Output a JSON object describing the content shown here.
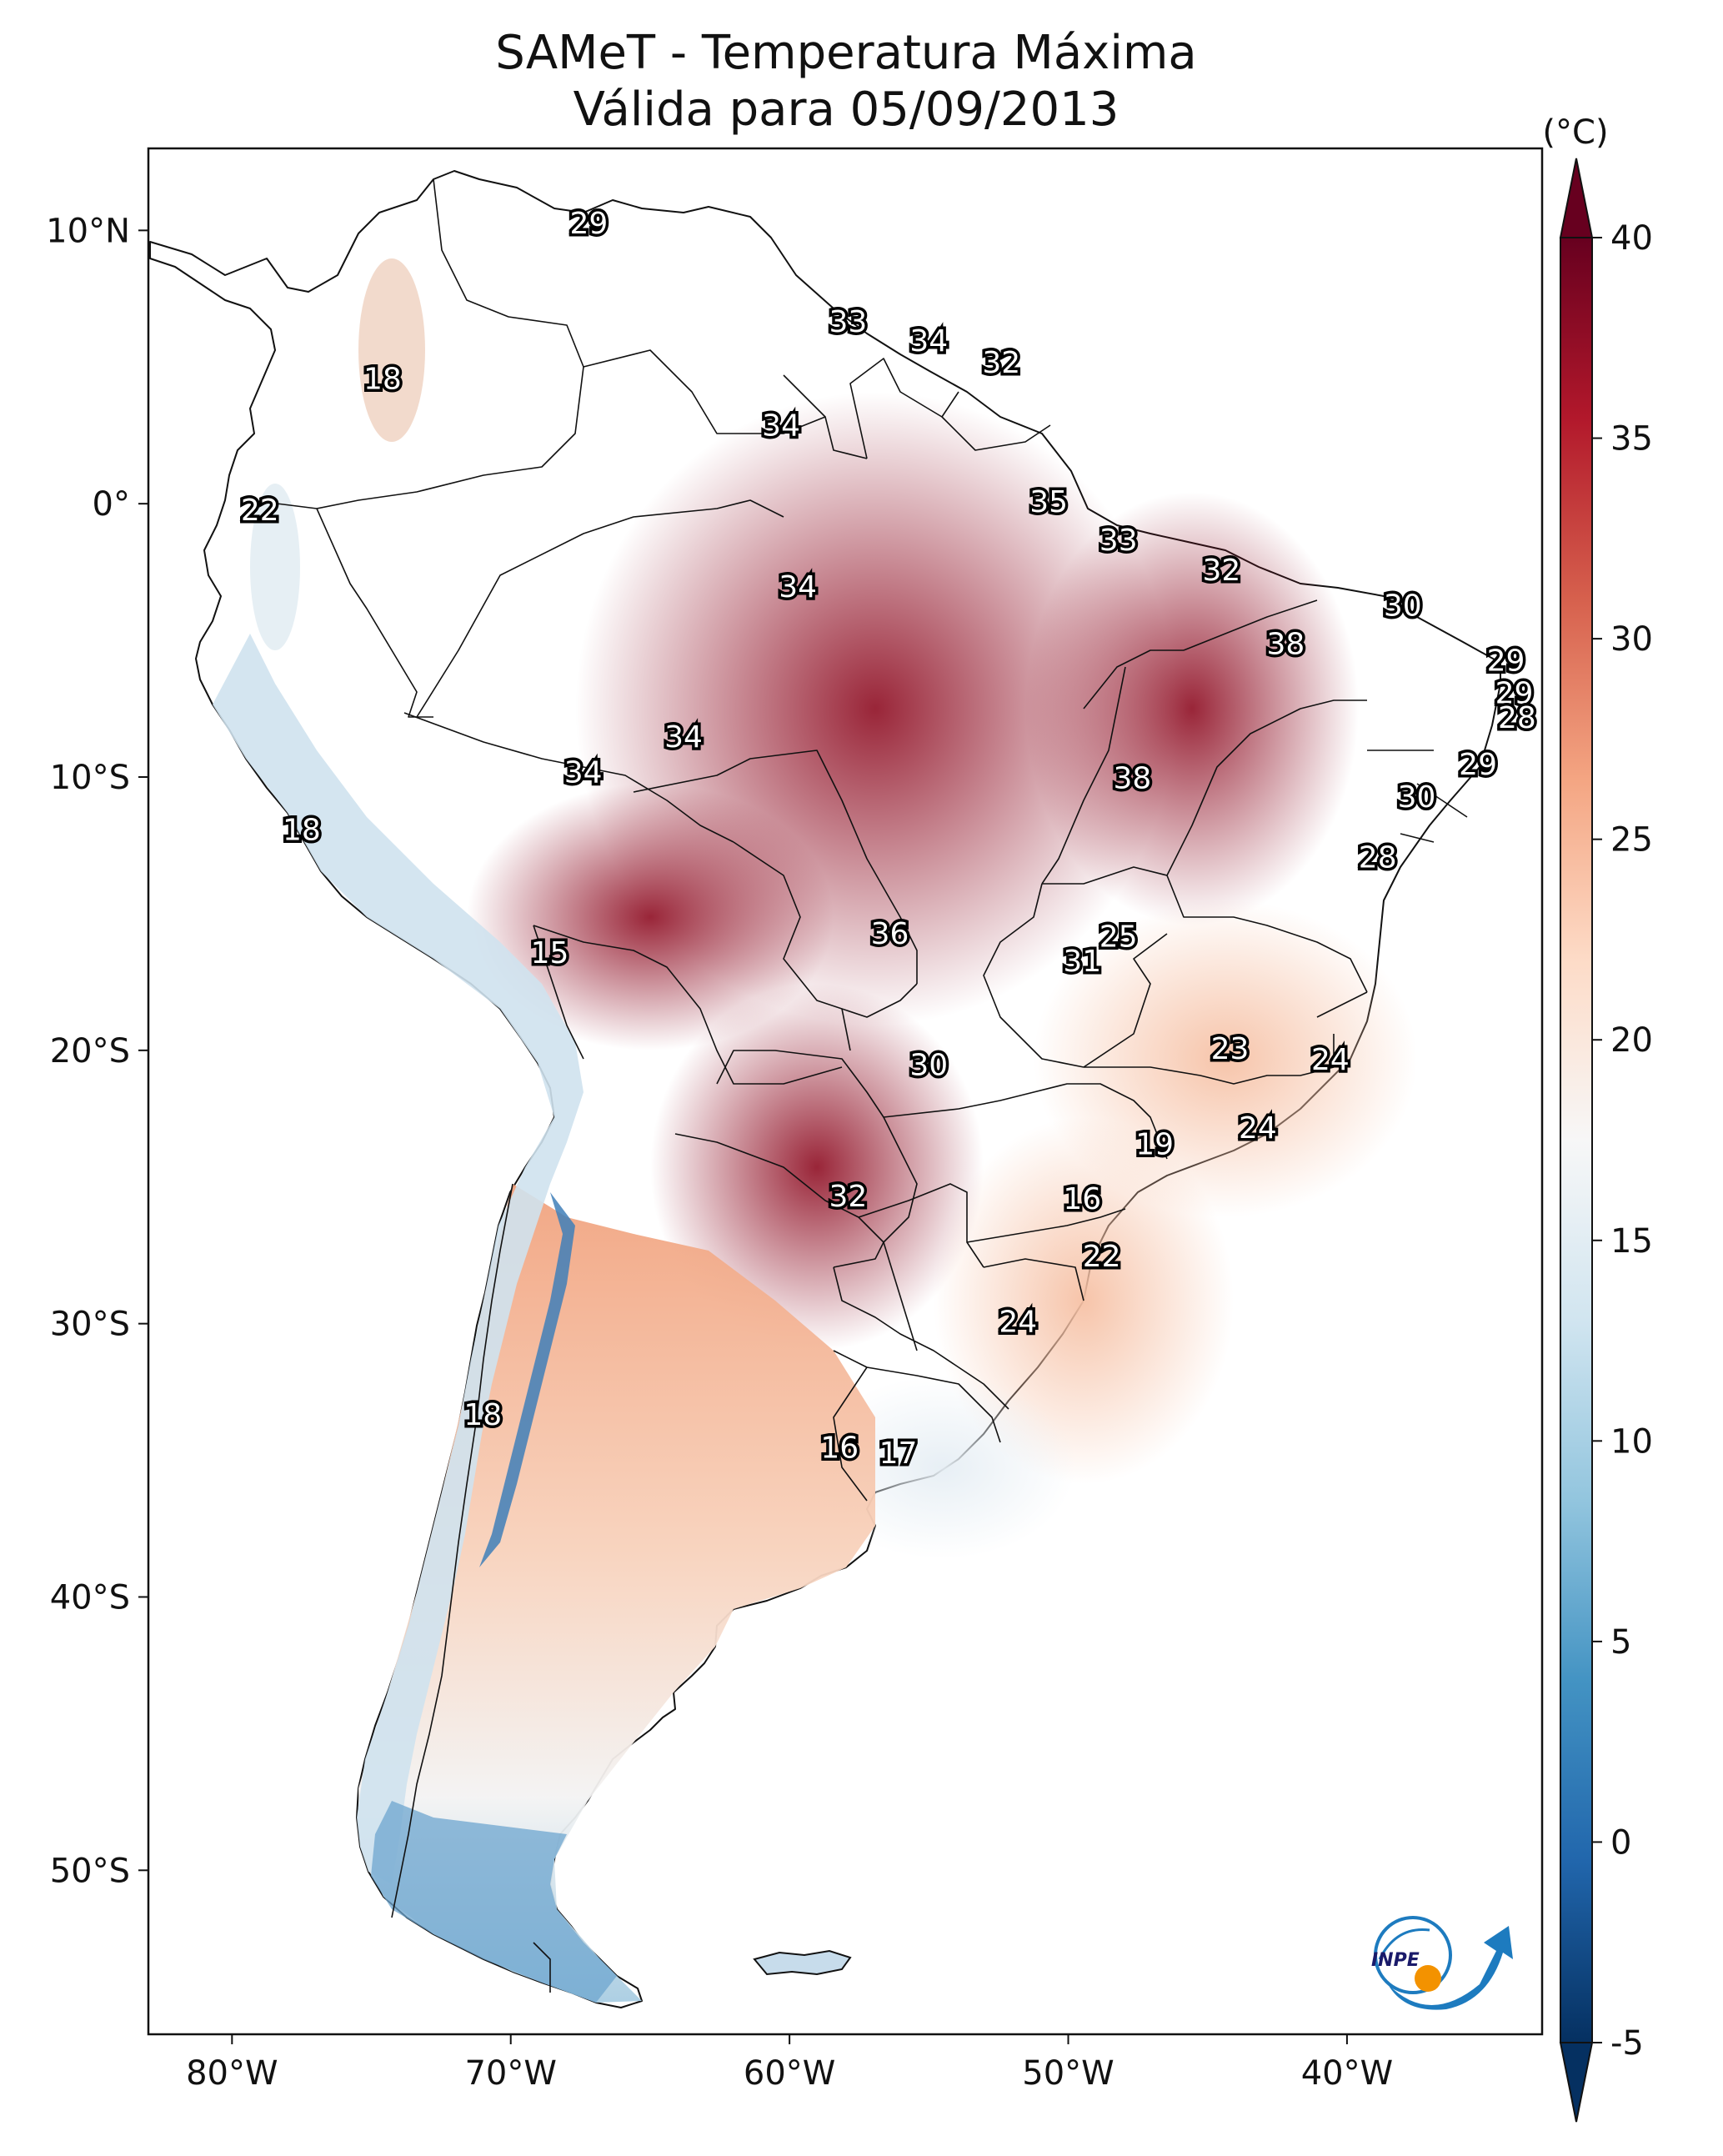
{
  "title": {
    "line1": "SAMeT - Temperatura Máxima",
    "line2": "Válida para 05/09/2013"
  },
  "map": {
    "lon_range": [
      -83,
      -33
    ],
    "lat_range": [
      -56,
      13
    ],
    "lon_ticks": [
      {
        "value": -80,
        "label": "80°W"
      },
      {
        "value": -70,
        "label": "70°W"
      },
      {
        "value": -60,
        "label": "60°W"
      },
      {
        "value": -50,
        "label": "50°W"
      },
      {
        "value": -40,
        "label": "40°W"
      }
    ],
    "lat_ticks": [
      {
        "value": 10,
        "label": "10°N"
      },
      {
        "value": 0,
        "label": "0°"
      },
      {
        "value": -10,
        "label": "10°S"
      },
      {
        "value": -20,
        "label": "20°S"
      },
      {
        "value": -30,
        "label": "30°S"
      },
      {
        "value": -40,
        "label": "40°S"
      },
      {
        "value": -50,
        "label": "50°S"
      }
    ]
  },
  "colorbar": {
    "unit_label": "(°C)",
    "min": -5,
    "max": 40,
    "ticks": [
      {
        "value": 40,
        "label": "40"
      },
      {
        "value": 35,
        "label": "35"
      },
      {
        "value": 30,
        "label": "30"
      },
      {
        "value": 25,
        "label": "25"
      },
      {
        "value": 20,
        "label": "20"
      },
      {
        "value": 15,
        "label": "15"
      },
      {
        "value": 10,
        "label": "10"
      },
      {
        "value": 5,
        "label": "5"
      },
      {
        "value": 0,
        "label": "0"
      },
      {
        "value": -5,
        "label": "-5"
      }
    ],
    "colors": [
      "#053061",
      "#2166ac",
      "#4393c3",
      "#92c5de",
      "#d1e5f0",
      "#f7f7f7",
      "#fddbc7",
      "#f4a582",
      "#d6604d",
      "#b2182b",
      "#67001f"
    ]
  },
  "temperature_labels": [
    {
      "value": "29",
      "lon": -67.2,
      "lat": 10.2
    },
    {
      "value": "18",
      "lon": -74.6,
      "lat": 4.5
    },
    {
      "value": "33",
      "lon": -57.9,
      "lat": 6.6
    },
    {
      "value": "34",
      "lon": -55.0,
      "lat": 5.9
    },
    {
      "value": "32",
      "lon": -52.4,
      "lat": 5.1
    },
    {
      "value": "34",
      "lon": -60.3,
      "lat": 2.8
    },
    {
      "value": "22",
      "lon": -79.0,
      "lat": -0.3
    },
    {
      "value": "35",
      "lon": -50.7,
      "lat": 0.0
    },
    {
      "value": "33",
      "lon": -48.2,
      "lat": -1.4
    },
    {
      "value": "32",
      "lon": -44.5,
      "lat": -2.5
    },
    {
      "value": "30",
      "lon": -38.0,
      "lat": -3.8
    },
    {
      "value": "34",
      "lon": -59.7,
      "lat": -3.1
    },
    {
      "value": "38",
      "lon": -42.2,
      "lat": -5.2
    },
    {
      "value": "29",
      "lon": -34.3,
      "lat": -5.8
    },
    {
      "value": "29",
      "lon": -34.0,
      "lat": -7.0
    },
    {
      "value": "28",
      "lon": -33.9,
      "lat": -7.9
    },
    {
      "value": "34",
      "lon": -63.8,
      "lat": -8.6
    },
    {
      "value": "34",
      "lon": -67.4,
      "lat": -9.9
    },
    {
      "value": "38",
      "lon": -47.7,
      "lat": -10.1
    },
    {
      "value": "29",
      "lon": -35.3,
      "lat": -9.6
    },
    {
      "value": "30",
      "lon": -37.5,
      "lat": -10.8
    },
    {
      "value": "18",
      "lon": -77.5,
      "lat": -12.0
    },
    {
      "value": "28",
      "lon": -38.9,
      "lat": -13.0
    },
    {
      "value": "36",
      "lon": -56.4,
      "lat": -15.8
    },
    {
      "value": "25",
      "lon": -48.2,
      "lat": -15.9
    },
    {
      "value": "31",
      "lon": -49.5,
      "lat": -16.8
    },
    {
      "value": "15",
      "lon": -68.6,
      "lat": -16.5
    },
    {
      "value": "23",
      "lon": -44.2,
      "lat": -20.0
    },
    {
      "value": "24",
      "lon": -40.6,
      "lat": -20.4
    },
    {
      "value": "30",
      "lon": -55.0,
      "lat": -20.6
    },
    {
      "value": "24",
      "lon": -43.2,
      "lat": -22.9
    },
    {
      "value": "19",
      "lon": -46.9,
      "lat": -23.5
    },
    {
      "value": "16",
      "lon": -49.5,
      "lat": -25.5
    },
    {
      "value": "32",
      "lon": -57.9,
      "lat": -25.4
    },
    {
      "value": "22",
      "lon": -48.8,
      "lat": -27.6
    },
    {
      "value": "24",
      "lon": -51.8,
      "lat": -30.0
    },
    {
      "value": "18",
      "lon": -71.0,
      "lat": -33.4
    },
    {
      "value": "16",
      "lon": -58.2,
      "lat": -34.6
    },
    {
      "value": "17",
      "lon": -56.1,
      "lat": -34.8
    }
  ]
}
